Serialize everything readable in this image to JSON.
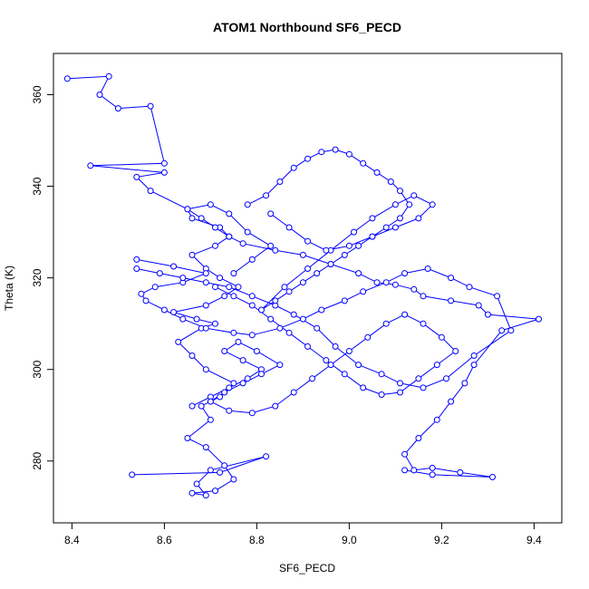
{
  "chart_data": {
    "type": "scatter",
    "mode": "points+lines",
    "title": "ATOM1 Northbound SF6_PECD",
    "xlabel": "SF6_PECD",
    "ylabel": "Theta (K)",
    "xlim": [
      8.36,
      9.46
    ],
    "ylim": [
      266.5,
      369
    ],
    "xticks": [
      8.4,
      8.6,
      8.8,
      9.0,
      9.2,
      9.4
    ],
    "xtick_labels": [
      "8.4",
      "8.6",
      "8.8",
      "9.0",
      "9.2",
      "9.4"
    ],
    "yticks": [
      280,
      300,
      320,
      340,
      360
    ],
    "ytick_labels": [
      "280",
      "300",
      "320",
      "340",
      "360"
    ],
    "series_color": "#0000ff",
    "grid": false,
    "legend": "none",
    "series": [
      {
        "x": [
          8.39,
          8.48,
          8.46,
          8.5,
          8.57,
          8.6,
          8.44,
          8.6,
          8.54,
          8.57,
          8.65,
          8.66,
          8.72,
          8.74,
          8.77,
          8.84,
          8.9,
          8.96,
          9.02,
          9.06,
          9.1,
          9.14,
          9.16,
          9.22,
          9.28,
          9.3,
          9.41,
          9.33,
          9.27,
          9.25,
          9.22,
          9.19,
          9.15,
          9.12,
          9.14,
          9.18,
          9.24,
          9.31,
          9.18,
          9.12
        ],
        "y": [
          363.5,
          364.0,
          360.0,
          357.0,
          357.5,
          345.0,
          344.5,
          343.0,
          342.0,
          339.0,
          335.0,
          333.0,
          331.0,
          329.0,
          327.5,
          326.0,
          325.0,
          323.0,
          321.0,
          319.0,
          318.5,
          317.5,
          316.0,
          315.0,
          314.0,
          312.0,
          311.0,
          308.5,
          301.0,
          297.0,
          293.0,
          289.0,
          285.0,
          281.5,
          278.0,
          278.5,
          277.5,
          276.5,
          277.0,
          278.0
        ]
      },
      {
        "x": [
          8.53,
          8.72,
          8.82,
          8.7,
          8.67,
          8.69,
          8.66,
          8.71,
          8.75,
          8.73,
          8.69,
          8.65,
          8.7,
          8.68,
          8.72,
          8.75,
          8.69,
          8.66,
          8.63,
          8.68,
          8.71,
          8.67,
          8.62,
          8.69,
          8.73,
          8.76,
          8.72,
          8.69,
          8.66,
          8.71,
          8.74,
          8.71,
          8.68,
          8.65,
          8.7,
          8.74,
          8.78,
          8.83,
          8.79,
          8.75
        ],
        "y": [
          277.0,
          277.5,
          281.0,
          278.0,
          275.0,
          272.5,
          273.0,
          273.5,
          276.0,
          279.0,
          283.0,
          285.0,
          289.0,
          292.0,
          294.0,
          297.0,
          300.0,
          303.0,
          306.0,
          309.0,
          310.0,
          311.0,
          312.5,
          314.0,
          316.0,
          318.0,
          320.0,
          322.0,
          325.0,
          327.0,
          329.0,
          331.0,
          333.0,
          335.0,
          336.0,
          334.0,
          330.0,
          327.0,
          324.0,
          321.0
        ]
      },
      {
        "x": [
          8.54,
          8.62,
          8.69,
          8.64,
          8.58,
          8.55,
          8.56,
          8.6,
          8.64,
          8.69,
          8.75,
          8.79,
          8.85,
          8.9,
          8.94,
          8.99,
          9.03,
          9.08,
          9.12,
          9.17,
          9.22,
          9.26,
          9.32,
          9.35,
          9.27,
          9.21,
          9.16,
          9.11,
          9.07,
          9.02,
          8.97,
          8.93,
          8.88,
          8.84,
          8.79,
          8.74,
          8.69,
          8.64,
          8.59,
          8.54
        ],
        "y": [
          324.0,
          322.5,
          321.0,
          319.0,
          318.0,
          316.5,
          315.0,
          313.0,
          311.0,
          309.0,
          308.0,
          307.5,
          309.0,
          311.0,
          313.0,
          315.0,
          317.0,
          319.0,
          321.0,
          322.0,
          320.0,
          318.0,
          316.0,
          308.5,
          303.0,
          298.0,
          296.0,
          297.0,
          299.0,
          301.0,
          305.0,
          309.0,
          312.0,
          314.0,
          316.0,
          318.0,
          319.0,
          320.0,
          321.0,
          322.0
        ]
      },
      {
        "x": [
          8.78,
          8.82,
          8.85,
          8.88,
          8.91,
          8.94,
          8.97,
          9.0,
          9.03,
          9.06,
          9.09,
          9.11,
          9.13,
          9.11,
          9.08,
          9.05,
          9.02,
          8.99,
          8.96,
          8.93,
          8.9,
          8.87,
          8.84,
          8.81,
          8.86,
          8.91,
          8.96,
          9.01,
          9.05,
          9.1,
          9.14,
          9.18,
          9.15,
          9.1,
          9.05,
          9.0,
          8.95,
          8.91,
          8.87,
          8.83
        ],
        "y": [
          336.0,
          338.0,
          341.0,
          344.0,
          346.0,
          347.5,
          348.0,
          347.0,
          345.0,
          343.0,
          341.0,
          339.0,
          336.0,
          333.0,
          331.0,
          329.0,
          327.0,
          325.0,
          323.0,
          321.0,
          319.0,
          317.0,
          315.0,
          313.0,
          318.0,
          322.0,
          326.0,
          330.0,
          333.0,
          336.0,
          338.0,
          336.0,
          333.0,
          331.0,
          329.0,
          327.0,
          326.0,
          328.0,
          331.0,
          334.0
        ]
      },
      {
        "x": [
          8.66,
          8.7,
          8.74,
          8.78,
          8.81,
          8.77,
          8.73,
          8.76,
          8.8,
          8.85,
          8.81,
          8.77,
          8.73,
          8.7,
          8.74,
          8.79,
          8.84,
          8.88,
          8.92,
          8.96,
          9.0,
          9.04,
          9.08,
          9.12,
          9.16,
          9.2,
          9.23,
          9.19,
          9.15,
          9.11,
          9.07,
          9.03,
          8.99,
          8.95,
          8.91,
          8.87,
          8.83,
          8.79,
          8.75,
          8.71
        ],
        "y": [
          292.0,
          294.0,
          296.0,
          298.0,
          300.0,
          302.0,
          304.0,
          306.0,
          304.0,
          301.0,
          299.0,
          297.0,
          295.0,
          293.0,
          291.0,
          290.5,
          292.0,
          295.0,
          298.0,
          301.0,
          304.0,
          307.0,
          310.0,
          312.0,
          310.0,
          307.0,
          304.0,
          301.0,
          298.0,
          295.0,
          294.5,
          296.0,
          299.0,
          302.0,
          305.0,
          308.0,
          311.0,
          314.0,
          316.0,
          318.0
        ]
      }
    ]
  }
}
